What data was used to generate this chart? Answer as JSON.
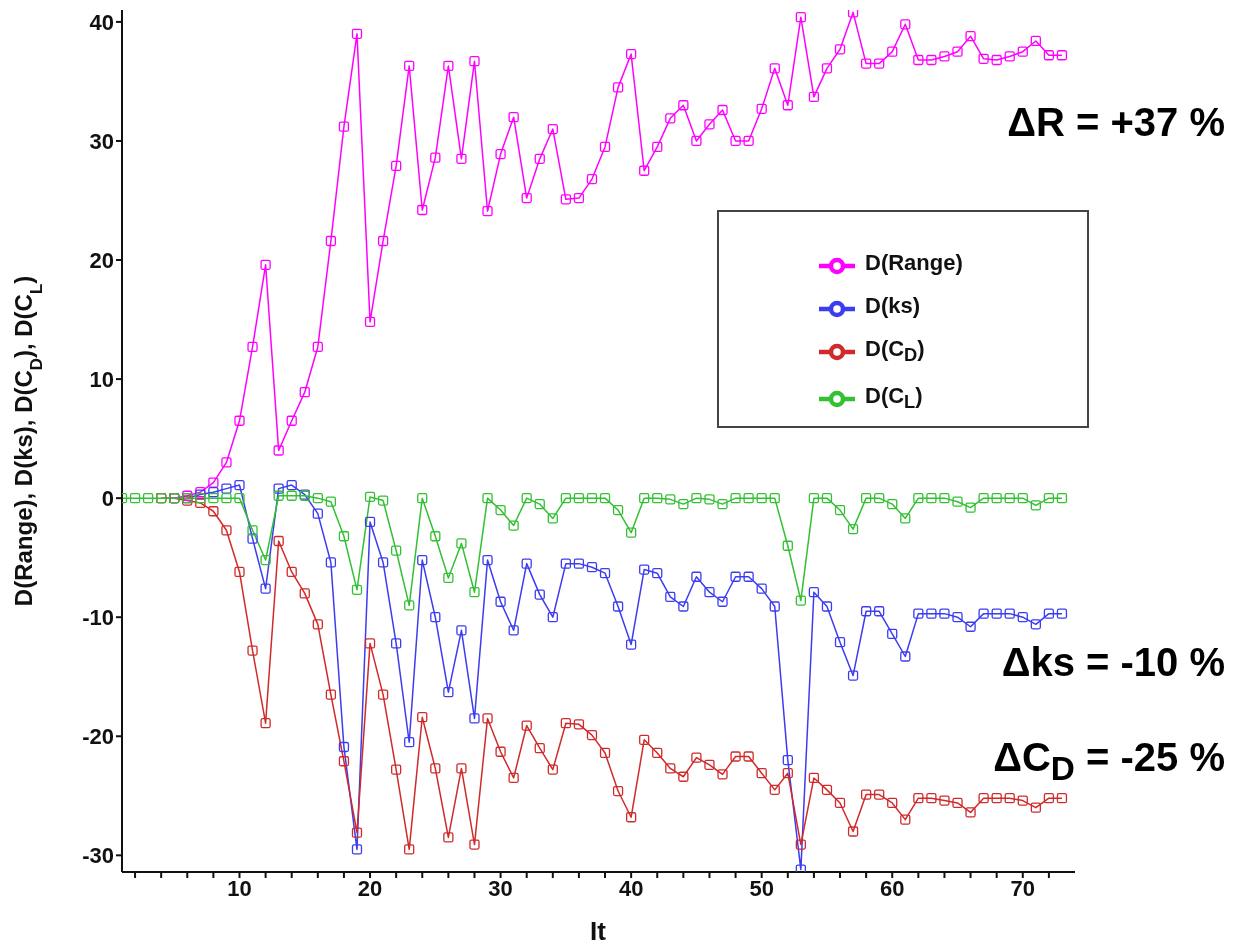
{
  "chart_data": {
    "type": "line",
    "xlabel": "It",
    "ylabel": "D(Range), D(ks), D(C$_{D}$), D(C$_{L}$)",
    "x": [
      1,
      2,
      3,
      4,
      5,
      6,
      7,
      8,
      9,
      10,
      11,
      12,
      13,
      14,
      15,
      16,
      17,
      18,
      19,
      20,
      21,
      22,
      23,
      24,
      25,
      26,
      27,
      28,
      29,
      30,
      31,
      32,
      33,
      34,
      35,
      36,
      37,
      38,
      39,
      40,
      41,
      42,
      43,
      44,
      45,
      46,
      47,
      48,
      49,
      50,
      51,
      52,
      53,
      54,
      55,
      56,
      57,
      58,
      59,
      60,
      61,
      62,
      63,
      64,
      65,
      66,
      67,
      68,
      69,
      70,
      71,
      72,
      73
    ],
    "series": [
      {
        "name": "D(Range)",
        "color": "#ff00ff",
        "values": [
          null,
          null,
          null,
          0,
          0,
          0.2,
          0.5,
          1.3,
          3.0,
          6.5,
          12.7,
          19.6,
          4.0,
          6.5,
          8.9,
          12.7,
          21.6,
          31.2,
          39.0,
          14.8,
          21.6,
          27.9,
          36.3,
          24.2,
          28.6,
          36.3,
          28.5,
          36.7,
          24.1,
          28.9,
          32.0,
          25.2,
          28.5,
          31.0,
          25.1,
          25.2,
          26.8,
          29.5,
          34.5,
          37.3,
          27.5,
          29.5,
          31.9,
          33.0,
          30.0,
          31.4,
          32.6,
          30.0,
          30.0,
          32.7,
          36.1,
          33.0,
          40.4,
          33.7,
          36.1,
          37.7,
          40.8,
          36.5,
          36.5,
          37.5,
          39.8,
          36.8,
          36.8,
          37.1,
          37.5,
          38.8,
          36.9,
          36.8,
          37.1,
          37.5,
          38.4,
          37.2,
          37.2
        ]
      },
      {
        "name": "D(ks)",
        "color": "#3c3cf0",
        "values": [
          null,
          null,
          null,
          null,
          0,
          0,
          0.3,
          0.5,
          0.8,
          1.1,
          -3.4,
          -7.6,
          0.8,
          1.1,
          0.3,
          -1.3,
          -5.4,
          -20.9,
          -29.5,
          -2.0,
          -5.4,
          -12.2,
          -20.5,
          -5.2,
          -10.0,
          -16.3,
          -11.1,
          -18.5,
          -5.2,
          -8.7,
          -11.1,
          -5.5,
          -8.1,
          -10.0,
          -5.5,
          -5.5,
          -5.8,
          -6.3,
          -9.1,
          -12.3,
          -6.0,
          -6.3,
          -8.3,
          -9.1,
          -6.6,
          -7.9,
          -8.7,
          -6.6,
          -6.6,
          -7.6,
          -9.1,
          -22,
          -31.2,
          -7.9,
          -9.1,
          -12.1,
          -14.9,
          -9.5,
          -9.5,
          -11.4,
          -13.3,
          -9.7,
          -9.7,
          -9.7,
          -10.0,
          -10.8,
          -9.7,
          -9.7,
          -9.7,
          -10.0,
          -10.6,
          -9.7,
          -9.7
        ]
      },
      {
        "name": "D(C$_{D}$)",
        "color": "#d02a2a",
        "values": [
          null,
          null,
          null,
          0,
          0,
          -0.2,
          -0.4,
          -1.1,
          -2.7,
          -6.2,
          -12.8,
          -18.9,
          -3.6,
          -6.2,
          -8.0,
          -10.6,
          -16.5,
          -22.1,
          -28.1,
          -12.2,
          -16.5,
          -22.8,
          -29.5,
          -18.4,
          -22.7,
          -28.5,
          -22.7,
          -29.1,
          -18.5,
          -21.3,
          -23.5,
          -19.1,
          -21.0,
          -22.8,
          -18.9,
          -19.0,
          -19.9,
          -21.4,
          -24.6,
          -26.8,
          -20.3,
          -21.4,
          -22.7,
          -23.4,
          -21.8,
          -22.4,
          -23.2,
          -21.7,
          -21.7,
          -23.1,
          -24.5,
          -23.1,
          -29.1,
          -23.5,
          -24.5,
          -25.6,
          -28.0,
          -24.9,
          -24.9,
          -25.6,
          -27.0,
          -25.2,
          -25.2,
          -25.4,
          -25.6,
          -26.4,
          -25.2,
          -25.2,
          -25.2,
          -25.4,
          -26.0,
          -25.2,
          -25.2
        ]
      },
      {
        "name": "D(C$_{L}$)",
        "color": "#33c033",
        "values": [
          0,
          0,
          0,
          0,
          0,
          0,
          0,
          0,
          0,
          0,
          -2.7,
          -5.2,
          0.2,
          0.2,
          0.2,
          0,
          -0.3,
          -3.2,
          -7.7,
          0.1,
          -0.2,
          -4.4,
          -9.0,
          0,
          -3.2,
          -6.7,
          -3.8,
          -7.9,
          0,
          -1.0,
          -2.3,
          0,
          -0.5,
          -1.7,
          0,
          0,
          0,
          0,
          -1.0,
          -2.9,
          0,
          0,
          -0.1,
          -0.5,
          0,
          -0.1,
          -0.5,
          0,
          0,
          0,
          0,
          -4.0,
          -8.6,
          0,
          0,
          -1.0,
          -2.6,
          0,
          0,
          -0.5,
          -1.7,
          0,
          0,
          0,
          -0.3,
          -0.8,
          0,
          0,
          0,
          0,
          -0.6,
          0,
          0
        ]
      }
    ],
    "xlim": [
      1,
      74
    ],
    "xticks": [
      {
        "value": 2,
        "label": null
      },
      {
        "value": 4,
        "label": null
      },
      {
        "value": 6,
        "label": null
      },
      {
        "value": 8,
        "label": null
      },
      10,
      {
        "value": 12,
        "label": null
      },
      {
        "value": 14,
        "label": null
      },
      {
        "value": 16,
        "label": null
      },
      {
        "value": 18,
        "label": null
      },
      20,
      {
        "value": 22,
        "label": null
      },
      {
        "value": 24,
        "label": null
      },
      {
        "value": 26,
        "label": null
      },
      {
        "value": 28,
        "label": null
      },
      30,
      {
        "value": 32,
        "label": null
      },
      {
        "value": 34,
        "label": null
      },
      {
        "value": 36,
        "label": null
      },
      {
        "value": 38,
        "label": null
      },
      40,
      {
        "value": 42,
        "label": null
      },
      {
        "value": 44,
        "label": null
      },
      {
        "value": 46,
        "label": null
      },
      {
        "value": 48,
        "label": null
      },
      50,
      {
        "value": 52,
        "label": null
      },
      {
        "value": 54,
        "label": null
      },
      {
        "value": 56,
        "label": null
      },
      {
        "value": 58,
        "label": null
      },
      60,
      {
        "value": 62,
        "label": null
      },
      {
        "value": 64,
        "label": null
      },
      {
        "value": 66,
        "label": null
      },
      {
        "value": 68,
        "label": null
      },
      70,
      {
        "value": 72,
        "label": null
      }
    ],
    "ylim": [
      -31.4,
      41
    ],
    "yticks": [
      -30,
      -20,
      -10,
      0,
      10,
      20,
      30,
      40
    ],
    "grid": false,
    "legend": "right",
    "marker": "square",
    "line_style": "solid",
    "annotations": [
      "ΔR = +37 %",
      "Δks = -10 %",
      "ΔC$_{D}$ = -25 %"
    ]
  }
}
